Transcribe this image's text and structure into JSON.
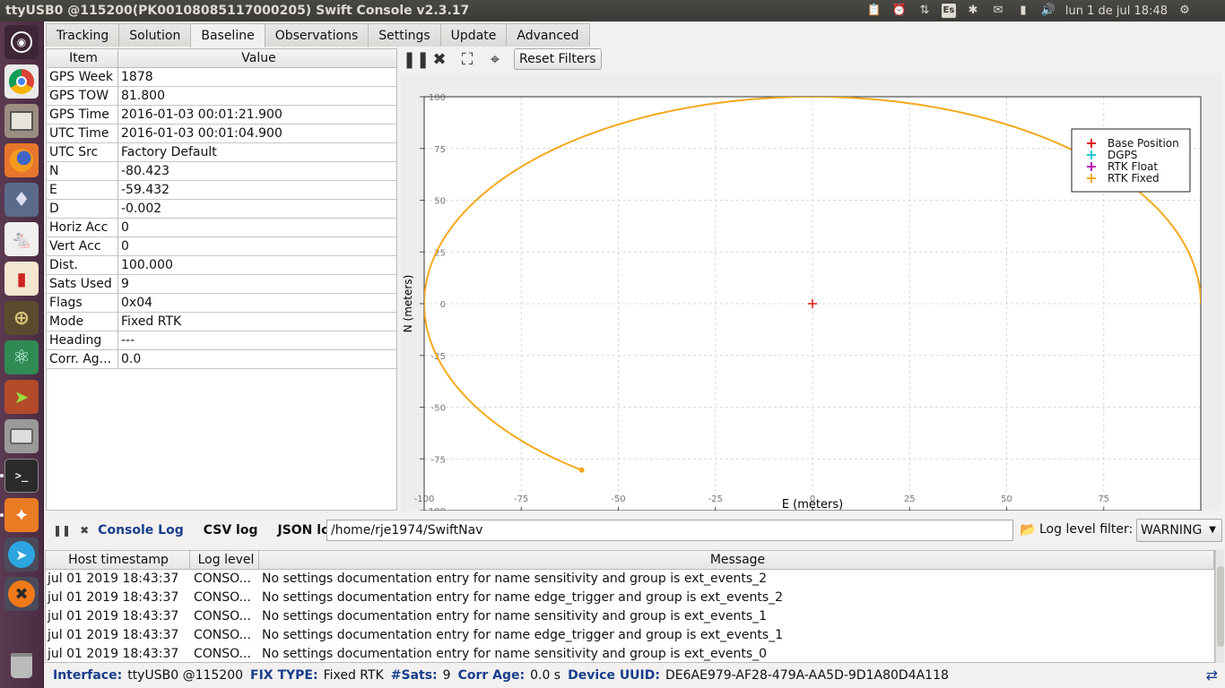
{
  "window": {
    "title": "ttyUSB0 @115200(PK0010808511700020​5) Swift Console v2.3.17"
  },
  "topbar": {
    "keyboard_layout": "Es",
    "datetime": "lun  1 de jul 18:48"
  },
  "launcher": {
    "items": [
      "ubuntu-dash",
      "chrome",
      "files-manager",
      "firefox",
      "ethereum-wallet",
      "mouse-app",
      "popcorn-time",
      "target-app",
      "atom-editor",
      "jdownloader",
      "disk-drive",
      "terminal",
      "sublime-text",
      "telegram",
      "crossover",
      "trash"
    ]
  },
  "tabs": [
    "Tracking",
    "Solution",
    "Baseline",
    "Observations",
    "Settings",
    "Update",
    "Advanced"
  ],
  "active_tab": "Baseline",
  "baseline_table": {
    "headers": [
      "Item",
      "Value"
    ],
    "rows": [
      {
        "item": "GPS Week",
        "value": "1878"
      },
      {
        "item": "GPS TOW",
        "value": "81.800"
      },
      {
        "item": "GPS Time",
        "value": "2016-01-03 00:01:21.900"
      },
      {
        "item": "UTC Time",
        "value": "2016-01-03 00:01:04.900"
      },
      {
        "item": "UTC Src",
        "value": "Factory Default"
      },
      {
        "item": "N",
        "value": "-80.423"
      },
      {
        "item": "E",
        "value": "-59.432"
      },
      {
        "item": "D",
        "value": "-0.002"
      },
      {
        "item": "Horiz Acc",
        "value": "0"
      },
      {
        "item": "Vert Acc",
        "value": "0"
      },
      {
        "item": "Dist.",
        "value": "100.000"
      },
      {
        "item": "Sats Used",
        "value": "9"
      },
      {
        "item": "Flags",
        "value": "0x04"
      },
      {
        "item": "Mode",
        "value": "Fixed RTK"
      },
      {
        "item": "Heading",
        "value": "---"
      },
      {
        "item": "Corr. Ag...",
        "value": "0.0"
      }
    ]
  },
  "plot_toolbar": {
    "pause_icon": "pause-icon",
    "clear_icon": "close-icon",
    "zoom_icon": "fit-zoom-icon",
    "center_icon": "crosshair-icon",
    "reset_label": "Reset Filters"
  },
  "chart_data": {
    "type": "scatter",
    "title": "",
    "xlabel": "E (meters)",
    "ylabel": "N (meters)",
    "xlim": [
      -100,
      100
    ],
    "ylim": [
      -100,
      100
    ],
    "xticks": [
      -100,
      -75,
      -50,
      -25,
      0,
      25,
      50,
      75
    ],
    "yticks": [
      -100,
      -75,
      -50,
      -25,
      0,
      25,
      50,
      75,
      100
    ],
    "xtick_labels": [
      "-100",
      "-75",
      "-50",
      "-25",
      "0",
      "25",
      "50",
      "75"
    ],
    "ytick_labels": [
      "-100",
      "-75",
      "-50",
      "-25",
      "0",
      "25",
      "50",
      "75",
      "100"
    ],
    "grid": true,
    "legend_position": "top-right",
    "legend": [
      "Base Position",
      "DGPS",
      "RTK Float",
      "RTK Fixed"
    ],
    "colors": {
      "Base Position": "#e11919",
      "DGPS": "#1ec8d4",
      "RTK Float": "#b416b4",
      "RTK Fixed": "#f5a81e"
    },
    "series": [
      {
        "name": "Base Position",
        "points": [
          [
            0,
            0
          ]
        ]
      },
      {
        "name": "RTK Fixed",
        "shape": "circle",
        "radius": 100,
        "center": [
          0,
          0
        ],
        "arc_from_deg": 0,
        "arc_to_deg": 233.5,
        "last_point": [
          -59.432,
          -80.423
        ]
      }
    ]
  },
  "console": {
    "tabs": [
      "Console Log",
      "CSV log",
      "JSON log"
    ],
    "active_tab": "Console Log",
    "log_path": "/home/rje1974/SwiftNav",
    "log_level_label": "Log level filter:",
    "log_level_value": "WARNING",
    "headers": [
      "Host timestamp",
      "Log level",
      "Message"
    ],
    "rows": [
      {
        "ts": "jul 01 2019 18:43:37",
        "level": "CONSO...",
        "msg": "No settings documentation entry for name sensitivity and group is ext_events_2"
      },
      {
        "ts": "jul 01 2019 18:43:37",
        "level": "CONSO...",
        "msg": "No settings documentation entry for name edge_trigger and group is ext_events_2"
      },
      {
        "ts": "jul 01 2019 18:43:37",
        "level": "CONSO...",
        "msg": "No settings documentation entry for name sensitivity and group is ext_events_1"
      },
      {
        "ts": "jul 01 2019 18:43:37",
        "level": "CONSO...",
        "msg": "No settings documentation entry for name edge_trigger and group is ext_events_1"
      },
      {
        "ts": "jul 01 2019 18:43:37",
        "level": "CONSO...",
        "msg": "No settings documentation entry for name sensitivity and group is ext_events_0"
      }
    ]
  },
  "status": {
    "interface_label": "Interface:",
    "interface_value": "ttyUSB0 @115200",
    "fix_label": "FIX TYPE:",
    "fix_value": "Fixed RTK",
    "sats_label": "#Sats:",
    "sats_value": "9",
    "corr_label": "Corr Age:",
    "corr_value": "0.0 s",
    "uuid_label": "Device UUID:",
    "uuid_value": "DE6AE979-AF28-479A-AA5D-9D1A80D4A118"
  }
}
